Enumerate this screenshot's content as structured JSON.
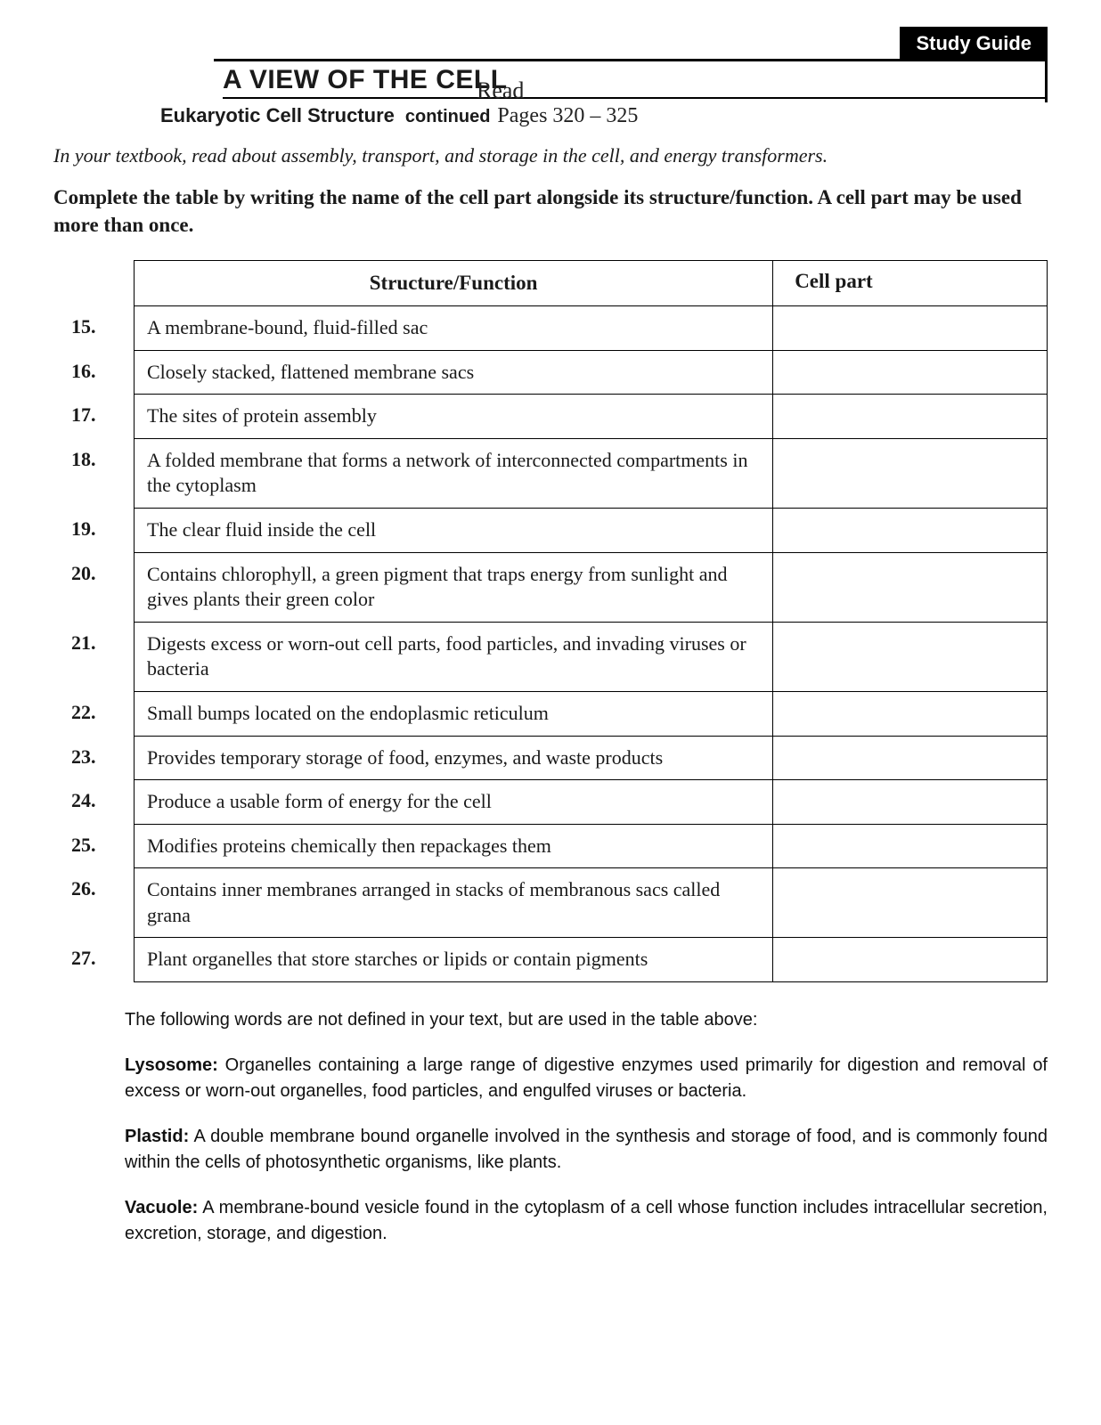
{
  "badge": "Study Guide",
  "title": "A VIEW OF THE CELL",
  "subtitle": "Eukaryotic Cell Structure",
  "continued": "continued",
  "hand_read": "Read",
  "hand_pages": "Pages  320 – 325",
  "instr_italic": "In your textbook, read about assembly, transport, and storage in the cell, and energy transformers.",
  "instr_bold": "Complete the table by writing the name of the cell part alongside its structure/function. A cell part may be used more than once.",
  "col_sf": "Structure/Function",
  "col_cp": "Cell part",
  "rows": [
    {
      "n": "15.",
      "t": "A membrane-bound, fluid-filled sac"
    },
    {
      "n": "16.",
      "t": "Closely stacked, flattened membrane sacs"
    },
    {
      "n": "17.",
      "t": "The sites of protein assembly"
    },
    {
      "n": "18.",
      "t": "A folded membrane that forms a network of interconnected compartments in the cytoplasm"
    },
    {
      "n": "19.",
      "t": "The clear fluid inside the cell"
    },
    {
      "n": "20.",
      "t": "Contains chlorophyll, a green pigment that traps energy from sunlight and gives plants their green color"
    },
    {
      "n": "21.",
      "t": "Digests excess or worn-out cell parts, food particles, and invading viruses or bacteria"
    },
    {
      "n": "22.",
      "t": "Small bumps located on the endoplasmic reticulum"
    },
    {
      "n": "23.",
      "t": "Provides temporary storage of food, enzymes, and waste products"
    },
    {
      "n": "24.",
      "t": "Produce a usable form of energy for the cell"
    },
    {
      "n": "25.",
      "t": "Modifies proteins chemically then repackages them"
    },
    {
      "n": "26.",
      "t": "Contains inner membranes arranged in stacks of membranous sacs called grana"
    },
    {
      "n": "27.",
      "t": "Plant organelles that store starches or lipids or contain pigments"
    }
  ],
  "defs_intro": "The following words are not defined in your text, but are used in the table above:",
  "defs": [
    {
      "term": "Lysosome:",
      "body": " Organelles containing a large range of digestive enzymes used primarily for digestion and removal of excess or worn-out organelles, food particles, and engulfed viruses or bacteria."
    },
    {
      "term": "Plastid:",
      "body": " A double membrane bound organelle involved in the synthesis and storage of food, and is commonly found within the cells of photosynthetic organisms, like plants."
    },
    {
      "term": "Vacuole:",
      "body": " A membrane-bound vesicle found in the cytoplasm of a cell whose function includes intracellular secretion, excretion, storage, and digestion."
    }
  ]
}
